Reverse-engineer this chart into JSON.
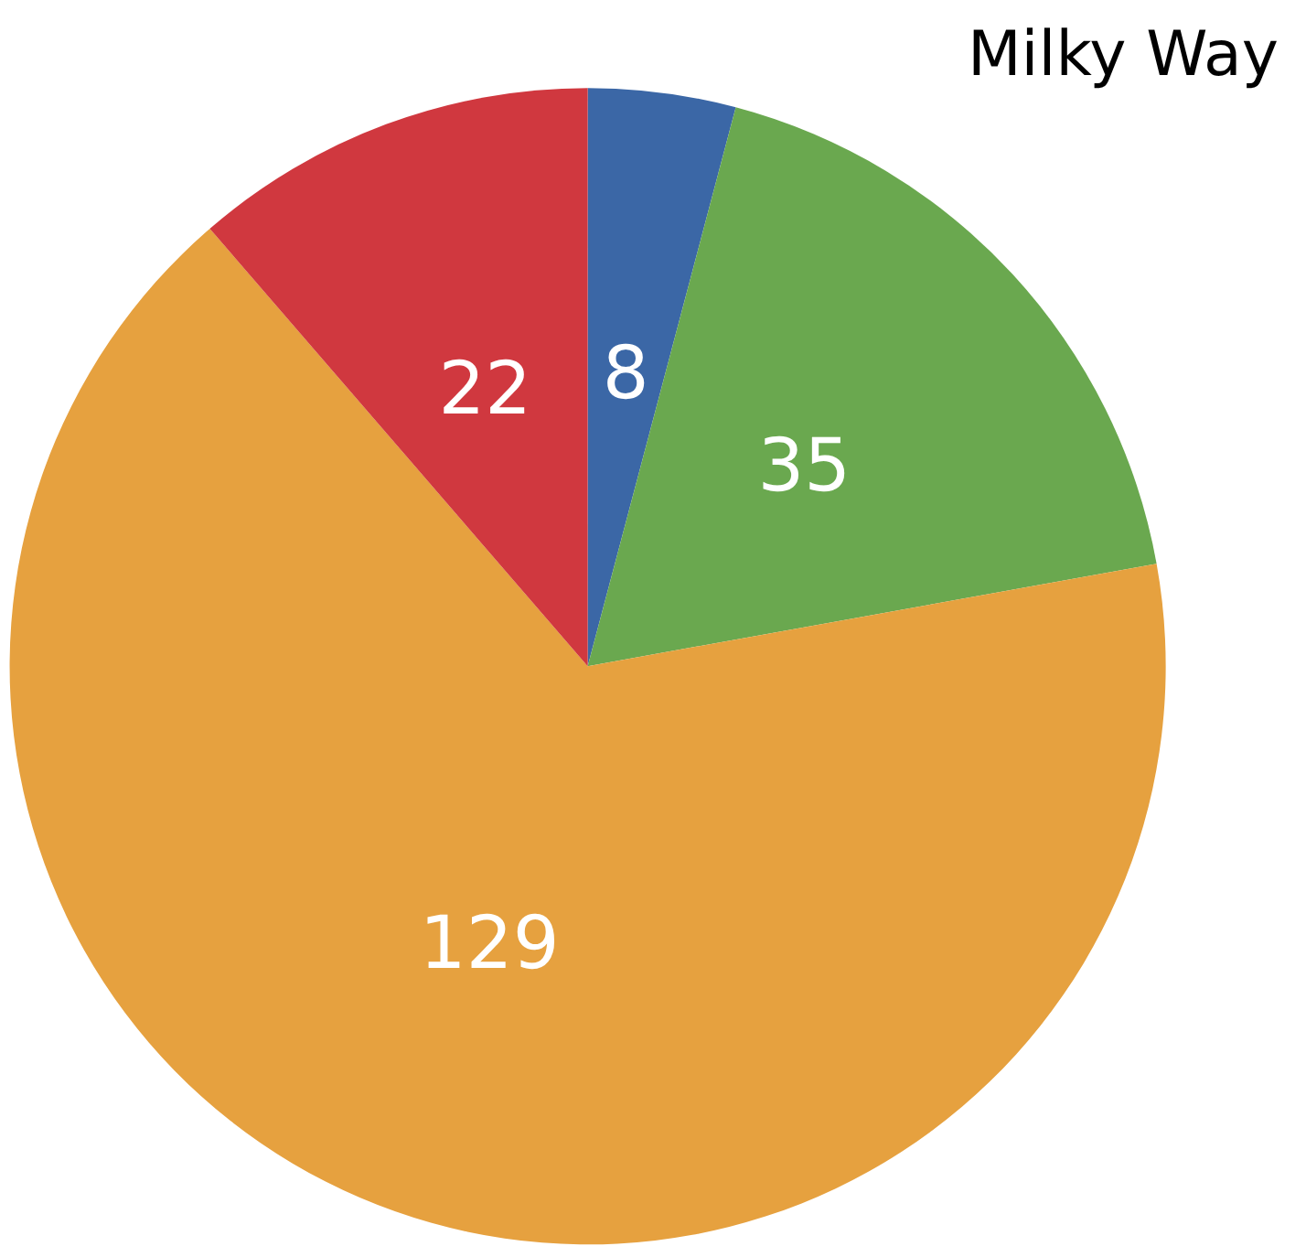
{
  "chart_data": {
    "type": "pie",
    "title": "Milky Way",
    "categories": [
      null,
      null,
      null,
      null
    ],
    "values": [
      8,
      35,
      129,
      22
    ],
    "colors": [
      "#3b67a6",
      "#6aa84f",
      "#e6a13f",
      "#d0383f"
    ],
    "data_labels": true
  }
}
